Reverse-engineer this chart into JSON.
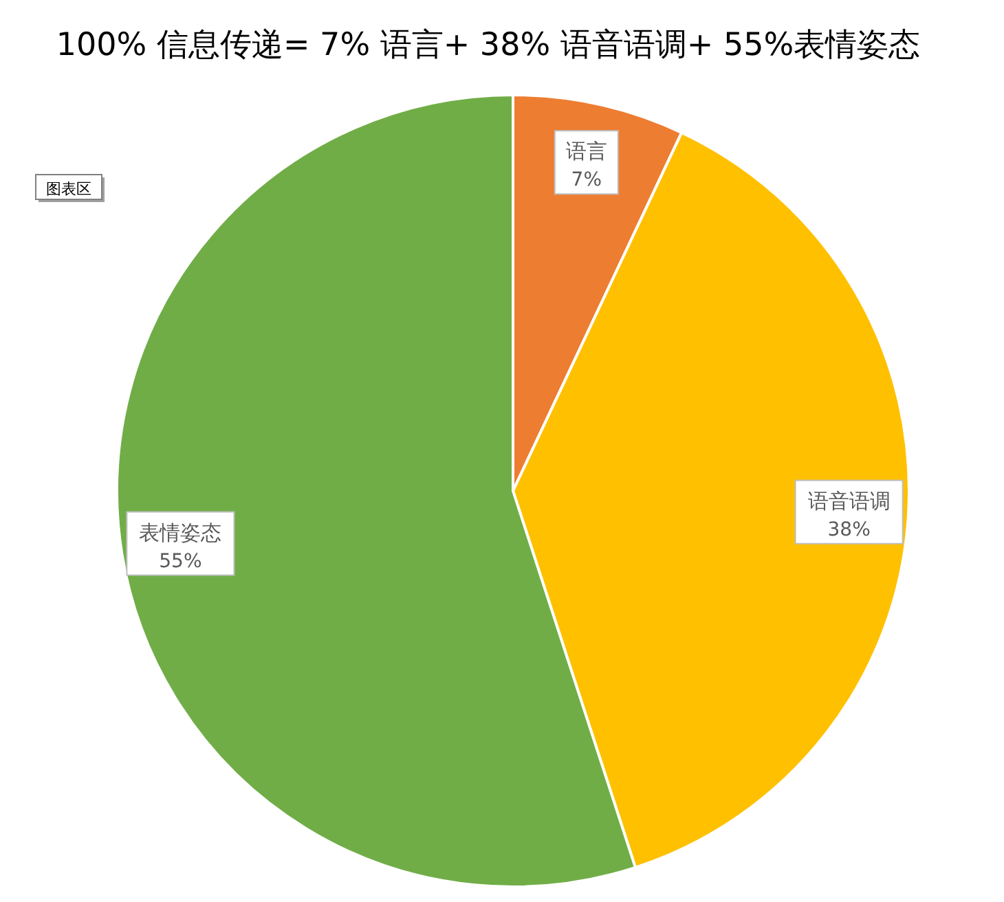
{
  "chart_data": {
    "type": "pie",
    "title": "100% 信息传递= 7% 语言+ 38% 语音语调+ 55%表情姿态",
    "categories": [
      "语言",
      "语音语调",
      "表情姿态"
    ],
    "values": [
      7,
      38,
      55
    ],
    "colors": [
      "#ed7d31",
      "#ffc000",
      "#70ad47"
    ],
    "value_labels": [
      "7%",
      "38%",
      "55%"
    ],
    "annotations": [
      "图表区"
    ]
  }
}
